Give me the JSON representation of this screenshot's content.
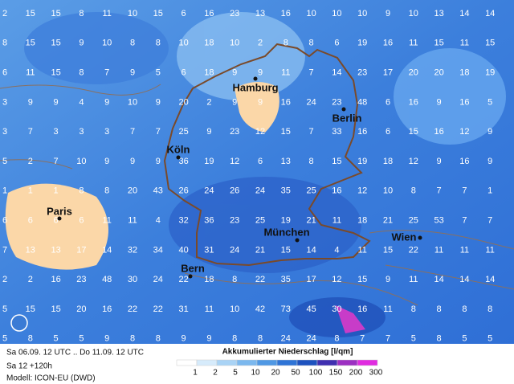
{
  "map": {
    "grid_values": [
      [
        2,
        15,
        15,
        8,
        11,
        10,
        15,
        6,
        16,
        23,
        13,
        16,
        10,
        10,
        10,
        9,
        10,
        13,
        14,
        14
      ],
      [
        8,
        15,
        15,
        9,
        10,
        8,
        8,
        10,
        18,
        10,
        2,
        8,
        8,
        6,
        19,
        16,
        11,
        15,
        11,
        15
      ],
      [
        6,
        11,
        15,
        8,
        7,
        9,
        5,
        6,
        18,
        9,
        9,
        11,
        7,
        14,
        23,
        17,
        20,
        20,
        18,
        19
      ],
      [
        3,
        9,
        9,
        4,
        9,
        10,
        9,
        20,
        2,
        9,
        9,
        16,
        24,
        23,
        48,
        6,
        16,
        9,
        16,
        5
      ],
      [
        3,
        7,
        3,
        3,
        3,
        7,
        7,
        25,
        9,
        23,
        12,
        15,
        7,
        33,
        16,
        6,
        15,
        16,
        12,
        9
      ],
      [
        5,
        2,
        7,
        10,
        9,
        9,
        9,
        36,
        19,
        12,
        6,
        13,
        8,
        15,
        19,
        18,
        12,
        9,
        16,
        9
      ],
      [
        1,
        1,
        1,
        8,
        8,
        20,
        43,
        26,
        24,
        26,
        24,
        35,
        25,
        16,
        12,
        10,
        8,
        7,
        7,
        1
      ],
      [
        6,
        6,
        6,
        6,
        11,
        11,
        4,
        32,
        36,
        23,
        25,
        19,
        21,
        11,
        18,
        21,
        25,
        53,
        7,
        7
      ],
      [
        7,
        13,
        13,
        17,
        14,
        32,
        34,
        40,
        31,
        24,
        21,
        15,
        14,
        4,
        11,
        15,
        22,
        11,
        11,
        11
      ],
      [
        2,
        2,
        16,
        23,
        48,
        30,
        24,
        22,
        18,
        8,
        22,
        35,
        17,
        12,
        15,
        9,
        11,
        14,
        14,
        14
      ],
      [
        5,
        15,
        15,
        20,
        16,
        22,
        22,
        31,
        11,
        10,
        42,
        73,
        45,
        30,
        16,
        11,
        8,
        8,
        8,
        8
      ],
      [
        5,
        8,
        5,
        5,
        9,
        8,
        8,
        9,
        9,
        8,
        8,
        24,
        24,
        8,
        7,
        7,
        5,
        8,
        5,
        5
      ]
    ],
    "cities": [
      "Hamburg",
      "Berlin",
      "Köln",
      "Paris",
      "München",
      "Wien",
      "Bern"
    ],
    "footer": {
      "period": "Sa 06.09. 12 UTC .. Do 11.09. 12 UTC",
      "step": "Sa 12 +120h",
      "model": "Modell: ICON-EU (DWD)",
      "title": "Akkumulierter Niederschlag [l/qm]"
    },
    "legend": [
      1,
      2,
      5,
      10,
      20,
      50,
      100,
      150,
      200,
      300
    ]
  }
}
